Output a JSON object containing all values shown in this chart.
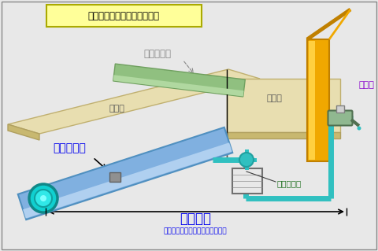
{
  "title": "配水管と給水装置のイメージ",
  "bg_color": "#e8e8e8",
  "road_color": "#e8deb0",
  "road_border": "#c0b070",
  "pipe_green_light": "#b0d8a0",
  "pipe_green_mid": "#90c080",
  "pipe_green_dark": "#70a060",
  "pipe_blue_light": "#b0d0f0",
  "pipe_blue_mid": "#80b0e0",
  "pipe_blue_dark": "#5090c0",
  "pipe_teal": "#30c0c0",
  "pipe_teal_dark": "#20a0a0",
  "building_color": "#f0a800",
  "building_dark": "#c08000",
  "text_blue": "#0000ee",
  "text_gray": "#888888",
  "text_green_dark": "#207020",
  "text_purple": "#8800cc",
  "title_bg": "#ffff99",
  "title_border": "#aaaa00",
  "white": "#ffffff",
  "black": "#000000",
  "road_label": "道　路",
  "land_label": "宅　地",
  "existing_pipe_label": "既設配水管",
  "new_pipe_label": "新設配水管",
  "meter_label": "水道メータ",
  "faucet_label": "蛇　口",
  "supply_label": "給水装置",
  "supply_sub": "（給水要望者が工事費用を負担）"
}
